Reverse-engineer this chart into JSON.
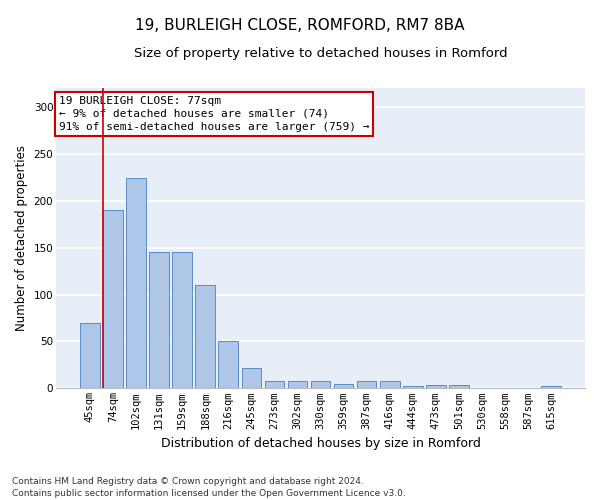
{
  "title1": "19, BURLEIGH CLOSE, ROMFORD, RM7 8BA",
  "title2": "Size of property relative to detached houses in Romford",
  "xlabel": "Distribution of detached houses by size in Romford",
  "ylabel": "Number of detached properties",
  "bar_labels": [
    "45sqm",
    "74sqm",
    "102sqm",
    "131sqm",
    "159sqm",
    "188sqm",
    "216sqm",
    "245sqm",
    "273sqm",
    "302sqm",
    "330sqm",
    "359sqm",
    "387sqm",
    "416sqm",
    "444sqm",
    "473sqm",
    "501sqm",
    "530sqm",
    "558sqm",
    "587sqm",
    "615sqm"
  ],
  "bar_values": [
    70,
    190,
    224,
    145,
    145,
    110,
    50,
    22,
    8,
    8,
    8,
    5,
    8,
    8,
    3,
    4,
    4,
    0,
    0,
    0,
    3
  ],
  "bar_color": "#aec6e8",
  "bar_edge_color": "#5b8cc8",
  "background_color": "#e8eef8",
  "grid_color": "#ffffff",
  "annotation_box_text": "19 BURLEIGH CLOSE: 77sqm\n← 9% of detached houses are smaller (74)\n91% of semi-detached houses are larger (759) →",
  "vline_color": "#cc0000",
  "box_edge_color": "#cc0000",
  "ylim": [
    0,
    320
  ],
  "yticks": [
    0,
    50,
    100,
    150,
    200,
    250,
    300
  ],
  "footnote": "Contains HM Land Registry data © Crown copyright and database right 2024.\nContains public sector information licensed under the Open Government Licence v3.0.",
  "title1_fontsize": 11,
  "title2_fontsize": 9.5,
  "xlabel_fontsize": 9,
  "ylabel_fontsize": 8.5,
  "tick_fontsize": 7.5,
  "annotation_fontsize": 8,
  "footnote_fontsize": 6.5
}
